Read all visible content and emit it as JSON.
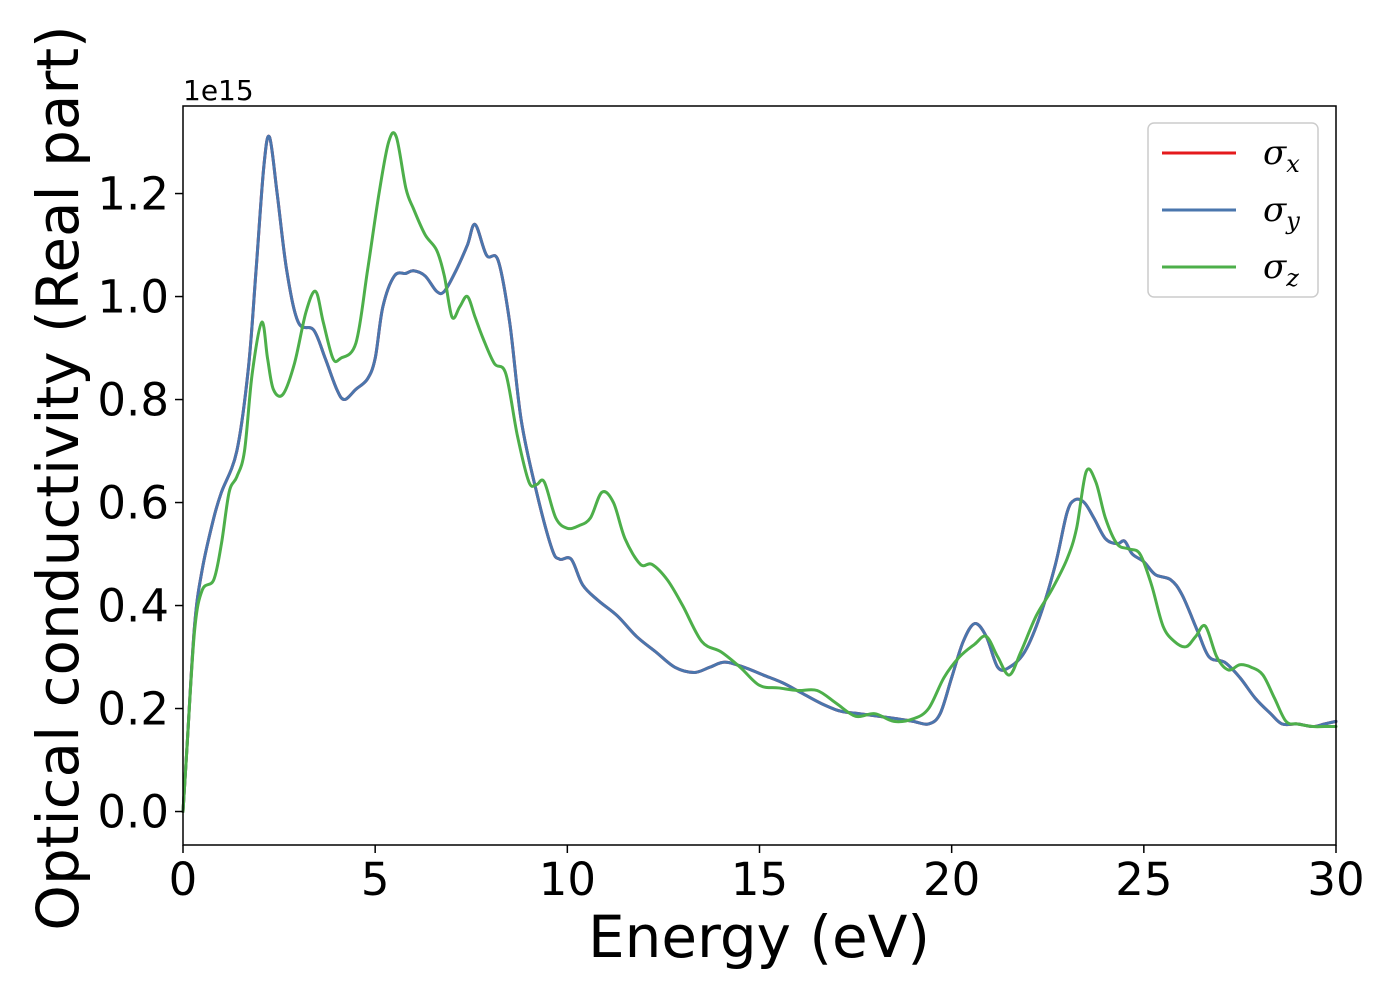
{
  "chart_data": {
    "type": "line",
    "xlabel": "Energy (eV)",
    "ylabel": "Optical conductivity (Real part)",
    "y_offset_label": "1e15",
    "xlim": [
      0,
      30
    ],
    "ylim": [
      -0.065,
      1.37
    ],
    "x_ticks": [
      0,
      5,
      10,
      15,
      20,
      25,
      30
    ],
    "x_tick_labels": [
      "0",
      "5",
      "10",
      "15",
      "20",
      "25",
      "30"
    ],
    "y_ticks": [
      0.0,
      0.2,
      0.4,
      0.6,
      0.8,
      1.0,
      1.2
    ],
    "y_tick_labels": [
      "0.0",
      "0.2",
      "0.4",
      "0.6",
      "0.8",
      "1.0",
      "1.2"
    ],
    "grid": false,
    "legend_position": "top-right",
    "series": [
      {
        "name": "σx",
        "label_base": "σ",
        "label_sub": "x",
        "color": "#e41a1c",
        "x": [
          0,
          0.1,
          0.3,
          0.5,
          0.8,
          1.0,
          1.4,
          1.7,
          1.9,
          2.1,
          2.25,
          2.45,
          2.7,
          3.0,
          3.4,
          3.7,
          4.0,
          4.2,
          4.5,
          4.8,
          5.0,
          5.2,
          5.5,
          5.8,
          6.0,
          6.3,
          6.6,
          6.8,
          7.1,
          7.4,
          7.6,
          7.9,
          8.2,
          8.5,
          8.8,
          9.2,
          9.6,
          9.8,
          10.1,
          10.4,
          10.8,
          11.3,
          11.8,
          12.3,
          12.8,
          13.3,
          13.7,
          14.1,
          14.6,
          15.1,
          15.6,
          16.1,
          16.6,
          17.1,
          17.6,
          18.1,
          18.6,
          19.0,
          19.4,
          19.7,
          20.0,
          20.3,
          20.6,
          20.9,
          21.2,
          21.5,
          21.9,
          22.3,
          22.7,
          23.0,
          23.2,
          23.45,
          23.7,
          24.0,
          24.3,
          24.5,
          24.7,
          25.0,
          25.3,
          25.7,
          26.0,
          26.4,
          26.7,
          27.1,
          27.5,
          27.9,
          28.3,
          28.6,
          29.0,
          29.4,
          29.7,
          30.0
        ],
        "y": [
          0.0,
          0.12,
          0.36,
          0.47,
          0.57,
          0.62,
          0.7,
          0.86,
          1.05,
          1.25,
          1.31,
          1.2,
          1.05,
          0.95,
          0.935,
          0.88,
          0.82,
          0.8,
          0.82,
          0.84,
          0.88,
          0.98,
          1.04,
          1.045,
          1.05,
          1.04,
          1.01,
          1.01,
          1.05,
          1.1,
          1.14,
          1.08,
          1.07,
          0.95,
          0.76,
          0.62,
          0.51,
          0.49,
          0.49,
          0.44,
          0.41,
          0.38,
          0.34,
          0.31,
          0.28,
          0.27,
          0.28,
          0.29,
          0.28,
          0.265,
          0.25,
          0.23,
          0.21,
          0.195,
          0.19,
          0.185,
          0.18,
          0.175,
          0.17,
          0.19,
          0.26,
          0.33,
          0.365,
          0.34,
          0.28,
          0.28,
          0.31,
          0.38,
          0.48,
          0.58,
          0.605,
          0.6,
          0.57,
          0.53,
          0.52,
          0.525,
          0.5,
          0.485,
          0.46,
          0.45,
          0.42,
          0.35,
          0.3,
          0.29,
          0.26,
          0.22,
          0.19,
          0.17,
          0.17,
          0.165,
          0.17,
          0.175
        ]
      },
      {
        "name": "σy",
        "label_base": "σ",
        "label_sub": "y",
        "color": "#4a76ad",
        "x": [
          0,
          0.1,
          0.3,
          0.5,
          0.8,
          1.0,
          1.4,
          1.7,
          1.9,
          2.1,
          2.25,
          2.45,
          2.7,
          3.0,
          3.4,
          3.7,
          4.0,
          4.2,
          4.5,
          4.8,
          5.0,
          5.2,
          5.5,
          5.8,
          6.0,
          6.3,
          6.6,
          6.8,
          7.1,
          7.4,
          7.6,
          7.9,
          8.2,
          8.5,
          8.8,
          9.2,
          9.6,
          9.8,
          10.1,
          10.4,
          10.8,
          11.3,
          11.8,
          12.3,
          12.8,
          13.3,
          13.7,
          14.1,
          14.6,
          15.1,
          15.6,
          16.1,
          16.6,
          17.1,
          17.6,
          18.1,
          18.6,
          19.0,
          19.4,
          19.7,
          20.0,
          20.3,
          20.6,
          20.9,
          21.2,
          21.5,
          21.9,
          22.3,
          22.7,
          23.0,
          23.2,
          23.45,
          23.7,
          24.0,
          24.3,
          24.5,
          24.7,
          25.0,
          25.3,
          25.7,
          26.0,
          26.4,
          26.7,
          27.1,
          27.5,
          27.9,
          28.3,
          28.6,
          29.0,
          29.4,
          29.7,
          30.0
        ],
        "y": [
          0.0,
          0.12,
          0.36,
          0.47,
          0.57,
          0.62,
          0.7,
          0.86,
          1.05,
          1.25,
          1.31,
          1.2,
          1.05,
          0.95,
          0.935,
          0.88,
          0.82,
          0.8,
          0.82,
          0.84,
          0.88,
          0.98,
          1.04,
          1.045,
          1.05,
          1.04,
          1.01,
          1.01,
          1.05,
          1.1,
          1.14,
          1.08,
          1.07,
          0.95,
          0.76,
          0.62,
          0.51,
          0.49,
          0.49,
          0.44,
          0.41,
          0.38,
          0.34,
          0.31,
          0.28,
          0.27,
          0.28,
          0.29,
          0.28,
          0.265,
          0.25,
          0.23,
          0.21,
          0.195,
          0.19,
          0.185,
          0.18,
          0.175,
          0.17,
          0.19,
          0.26,
          0.33,
          0.365,
          0.34,
          0.28,
          0.28,
          0.31,
          0.38,
          0.48,
          0.58,
          0.605,
          0.6,
          0.57,
          0.53,
          0.52,
          0.525,
          0.5,
          0.485,
          0.46,
          0.45,
          0.42,
          0.35,
          0.3,
          0.29,
          0.26,
          0.22,
          0.19,
          0.17,
          0.17,
          0.165,
          0.17,
          0.175
        ]
      },
      {
        "name": "σz",
        "label_base": "σ",
        "label_sub": "z",
        "color": "#4daf4a",
        "x": [
          0,
          0.1,
          0.3,
          0.5,
          0.8,
          1.0,
          1.2,
          1.4,
          1.6,
          1.8,
          2.05,
          2.2,
          2.35,
          2.6,
          2.9,
          3.2,
          3.45,
          3.65,
          3.9,
          4.1,
          4.5,
          4.8,
          5.1,
          5.35,
          5.55,
          5.8,
          6.0,
          6.3,
          6.6,
          6.8,
          7.0,
          7.2,
          7.4,
          7.6,
          7.8,
          8.1,
          8.4,
          8.7,
          9.0,
          9.2,
          9.4,
          9.7,
          10.0,
          10.3,
          10.6,
          10.9,
          11.2,
          11.5,
          11.9,
          12.2,
          12.6,
          13.0,
          13.5,
          14.0,
          14.5,
          15.0,
          15.5,
          16.0,
          16.5,
          17.0,
          17.5,
          18.0,
          18.5,
          19.0,
          19.4,
          19.8,
          20.2,
          20.6,
          20.9,
          21.2,
          21.5,
          21.8,
          22.2,
          22.6,
          23.0,
          23.25,
          23.5,
          23.75,
          24.0,
          24.3,
          24.6,
          24.9,
          25.2,
          25.5,
          25.8,
          26.1,
          26.35,
          26.6,
          26.9,
          27.2,
          27.5,
          27.8,
          28.1,
          28.4,
          28.7,
          29.0,
          29.4,
          29.7,
          30.0
        ],
        "y": [
          0.0,
          0.12,
          0.35,
          0.43,
          0.45,
          0.52,
          0.62,
          0.65,
          0.7,
          0.85,
          0.95,
          0.88,
          0.82,
          0.81,
          0.87,
          0.97,
          1.01,
          0.95,
          0.88,
          0.88,
          0.91,
          1.05,
          1.2,
          1.3,
          1.31,
          1.21,
          1.17,
          1.12,
          1.09,
          1.04,
          0.96,
          0.98,
          1.0,
          0.96,
          0.92,
          0.87,
          0.85,
          0.73,
          0.64,
          0.635,
          0.64,
          0.57,
          0.55,
          0.555,
          0.57,
          0.62,
          0.6,
          0.53,
          0.48,
          0.48,
          0.45,
          0.4,
          0.33,
          0.31,
          0.28,
          0.245,
          0.24,
          0.235,
          0.235,
          0.21,
          0.185,
          0.19,
          0.175,
          0.18,
          0.2,
          0.26,
          0.3,
          0.325,
          0.34,
          0.3,
          0.265,
          0.31,
          0.38,
          0.43,
          0.49,
          0.55,
          0.66,
          0.64,
          0.57,
          0.52,
          0.51,
          0.5,
          0.44,
          0.36,
          0.33,
          0.32,
          0.34,
          0.36,
          0.3,
          0.275,
          0.285,
          0.28,
          0.265,
          0.22,
          0.175,
          0.17,
          0.165,
          0.165,
          0.165
        ]
      }
    ]
  }
}
